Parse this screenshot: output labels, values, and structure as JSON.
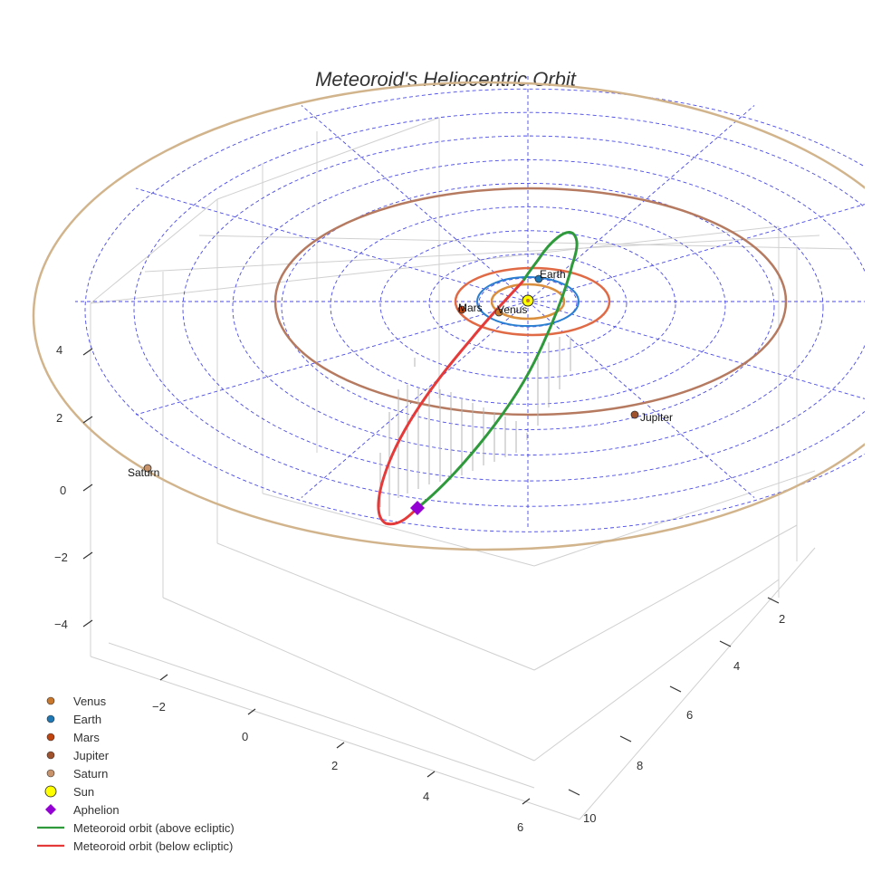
{
  "title": "Meteoroid's Heliocentric Orbit",
  "chart_data": {
    "type": "scatter3d",
    "title": "Meteoroid's Heliocentric Orbit",
    "axes": {
      "x": {
        "label": "",
        "ticks": [
          -2,
          0,
          2,
          4,
          6
        ]
      },
      "y": {
        "label": "",
        "ticks": [
          2,
          4,
          6,
          8,
          10
        ]
      },
      "z": {
        "label": "",
        "ticks": [
          4,
          2,
          0,
          -2,
          -4
        ]
      }
    },
    "tick_labels": {
      "x": [
        "−2",
        "0",
        "2",
        "4",
        "6"
      ],
      "y": [
        "2",
        "4",
        "6",
        "8",
        "10"
      ],
      "z": [
        "4",
        "2",
        "0",
        "−2",
        "−4"
      ]
    },
    "bodies": [
      {
        "name": "Venus",
        "label": "Venus",
        "color": "#c9772a",
        "orbit_color": "#d98f3e"
      },
      {
        "name": "Earth",
        "label": "Earth",
        "color": "#1f77b4",
        "orbit_color": "#2b7fd0"
      },
      {
        "name": "Mars",
        "label": "Mars",
        "color": "#c1440e",
        "orbit_color": "#e06a45"
      },
      {
        "name": "Jupiter",
        "label": "Jupiter",
        "color": "#a0522d",
        "orbit_color": "#b57a60"
      },
      {
        "name": "Saturn",
        "label": "Saturn",
        "color": "#c8926a",
        "orbit_color": "#d2b48c"
      }
    ],
    "sun": {
      "name": "Sun",
      "color": "#ffff00"
    },
    "aphelion": {
      "name": "Aphelion",
      "color": "#9400d3"
    },
    "series": [
      {
        "name": "Meteoroid orbit (above ecliptic)",
        "color": "#2e9a3c"
      },
      {
        "name": "Meteoroid orbit (below ecliptic)",
        "color": "#e53a3a"
      }
    ],
    "legend": {
      "position": "bottom-left",
      "entries": [
        {
          "label": "Venus",
          "symbol": "circle",
          "color": "#c9772a"
        },
        {
          "label": "Earth",
          "symbol": "circle",
          "color": "#1f77b4"
        },
        {
          "label": "Mars",
          "symbol": "circle",
          "color": "#c1440e"
        },
        {
          "label": "Jupiter",
          "symbol": "circle",
          "color": "#a0522d"
        },
        {
          "label": "Saturn",
          "symbol": "circle",
          "color": "#c8926a"
        },
        {
          "label": "Sun",
          "symbol": "circle-large",
          "color": "#ffff00"
        },
        {
          "label": "Aphelion",
          "symbol": "diamond",
          "color": "#9400d3"
        },
        {
          "label": "Meteoroid orbit (above ecliptic)",
          "symbol": "line",
          "color": "#2e9a3c"
        },
        {
          "label": "Meteoroid orbit (below ecliptic)",
          "symbol": "line",
          "color": "#e53a3a"
        }
      ]
    },
    "grid_color": "#4a4ae6"
  }
}
